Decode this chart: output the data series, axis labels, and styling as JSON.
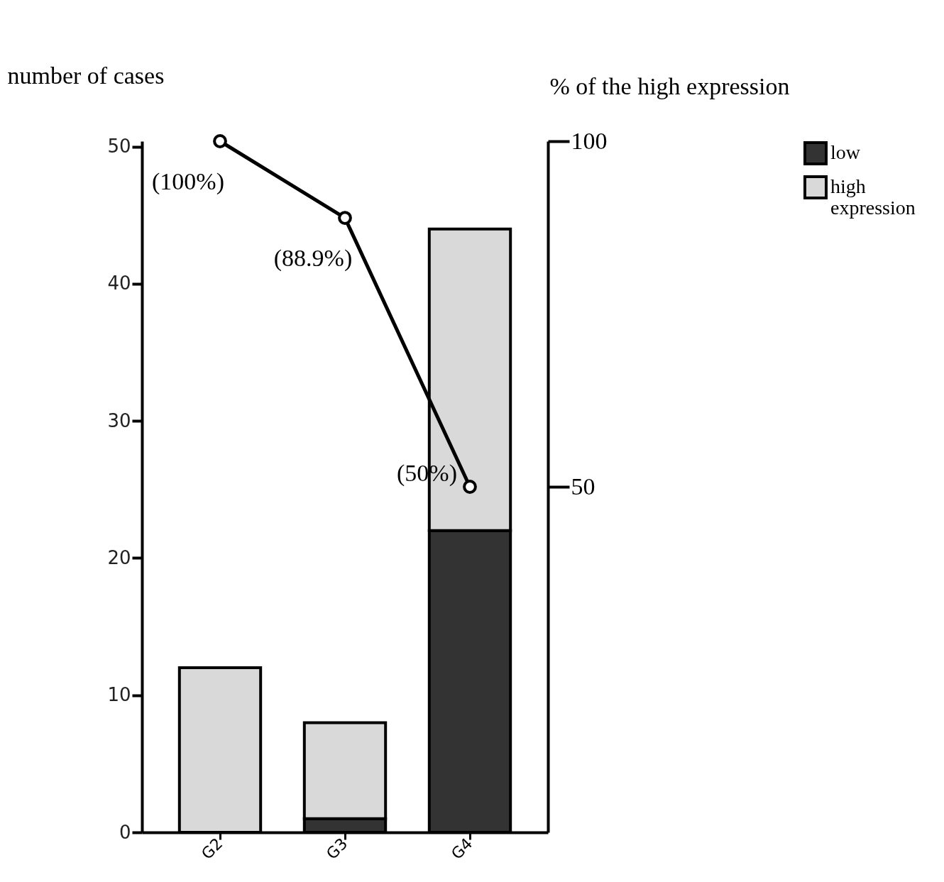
{
  "chart_data": {
    "type": "bar",
    "stacked": true,
    "categories": [
      "G2",
      "G3",
      "G4"
    ],
    "ylabel": "number of cases",
    "y2label": "% of the high expression",
    "series": [
      {
        "name": "low",
        "color": "#333333",
        "values": [
          0,
          1,
          22
        ]
      },
      {
        "name": "high expression",
        "color": "#d9d9d9",
        "values": [
          12,
          7,
          22
        ]
      },
      {
        "type": "line",
        "axis": "y2",
        "color": "#000000",
        "values": [
          100,
          88.9,
          50
        ],
        "value_labels": [
          "(100%)",
          "(88.9%)",
          "(50%)"
        ]
      }
    ],
    "ylim": [
      0,
      50.4
    ],
    "yticks": [
      0,
      10,
      20,
      30,
      40,
      50
    ],
    "y2lim": [
      0,
      100
    ],
    "y2ticks": [
      50,
      100
    ],
    "grid": false,
    "legend": "right",
    "marker": "circle",
    "line_style": "solid"
  }
}
